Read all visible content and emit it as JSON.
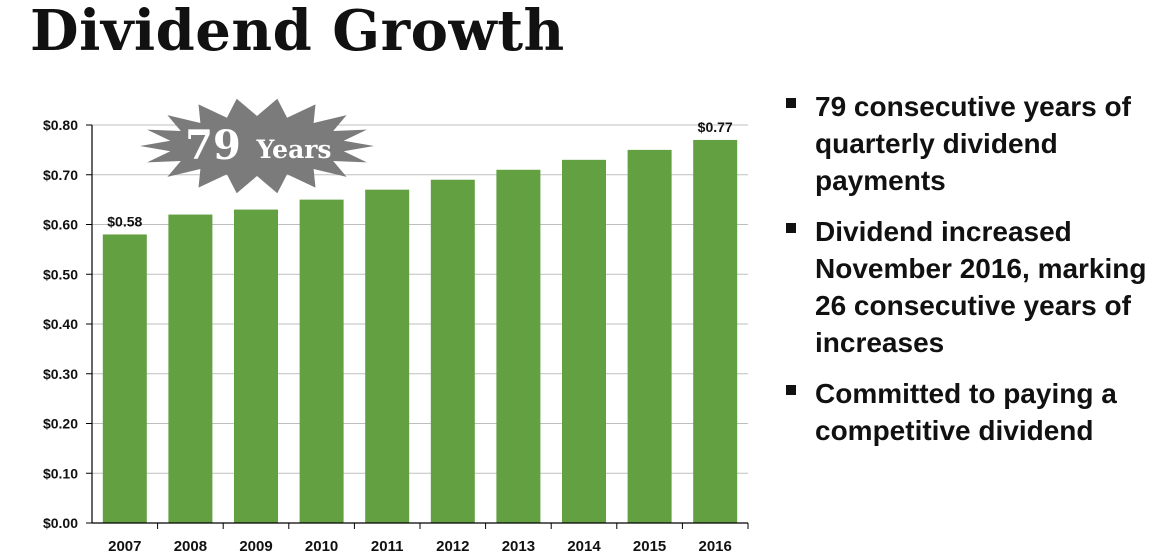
{
  "title": "Dividend Growth",
  "badge": {
    "number": "79",
    "word": "Years",
    "color": "#7b7b7b"
  },
  "bullets": [
    "79 consecutive years of quarterly dividend payments",
    "Dividend increased November 2016, marking 26 consecutive years of increases",
    "Committed to paying a competitive dividend"
  ],
  "colors": {
    "bar": "#62a042",
    "grid": "#bfbfbf",
    "text": "#111111"
  },
  "chart_data": {
    "type": "bar",
    "categories": [
      "2007",
      "2008",
      "2009",
      "2010",
      "2011",
      "2012",
      "2013",
      "2014",
      "2015",
      "2016"
    ],
    "values": [
      0.58,
      0.62,
      0.63,
      0.65,
      0.67,
      0.69,
      0.71,
      0.73,
      0.75,
      0.77
    ],
    "data_labels": {
      "0": "$0.58",
      "9": "$0.77"
    },
    "ylim": [
      0,
      0.8
    ],
    "yticks": [
      0,
      0.1,
      0.2,
      0.3,
      0.4,
      0.5,
      0.6,
      0.7,
      0.8
    ],
    "ytick_labels": [
      "$0.00",
      "$0.10",
      "$0.20",
      "$0.30",
      "$0.40",
      "$0.50",
      "$0.60",
      "$0.70",
      "$0.80"
    ],
    "grid": true,
    "xlabel": "",
    "ylabel": ""
  }
}
